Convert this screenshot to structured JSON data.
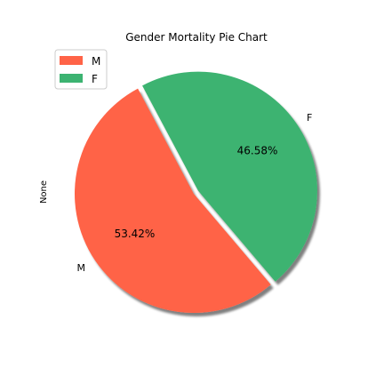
{
  "chart_data": {
    "type": "pie",
    "title": "Gender Mortality Pie Chart",
    "ylabel": "None",
    "categories": [
      "M",
      "F"
    ],
    "values": [
      53.42,
      46.58
    ],
    "percent_labels": [
      "53.42%",
      "46.58%"
    ],
    "colors": [
      "#ff6347",
      "#3cb371"
    ],
    "exploded": [
      "F"
    ],
    "shadow": true,
    "legend": {
      "position": "top-left",
      "entries": [
        "M",
        "F"
      ]
    }
  }
}
